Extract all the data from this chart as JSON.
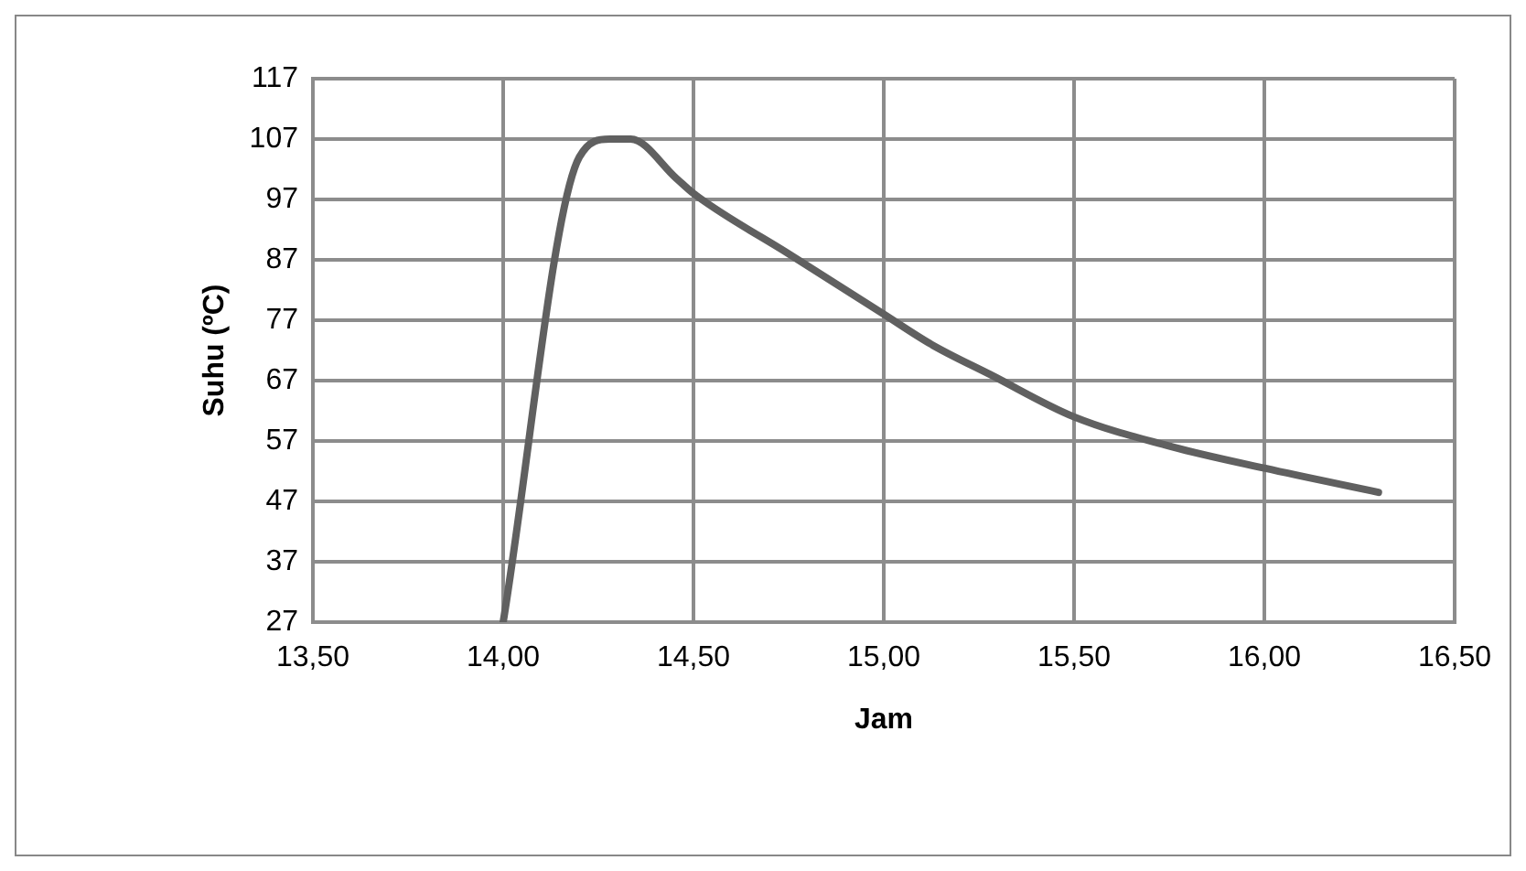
{
  "chart_data": {
    "type": "line",
    "xlabel": "Jam",
    "ylabel": "Suhu (ºC)",
    "x": [
      14.0,
      14.2,
      14.28,
      14.335,
      14.455,
      14.5,
      14.75,
      15.0,
      15.125,
      15.28,
      15.5,
      15.76,
      16.0,
      16.3
    ],
    "series": [
      {
        "color": "#606060",
        "values": [
          27,
          104,
          107,
          107,
          100.5,
          98,
          88,
          78,
          73,
          68,
          61,
          56,
          52.5,
          48.5
        ]
      }
    ],
    "xlim": [
      13.5,
      16.5
    ],
    "xticks": [
      {
        "value": 13.5,
        "label": "13,50"
      },
      {
        "value": 14,
        "label": "14,00"
      },
      {
        "value": 14.5,
        "label": "14,50"
      },
      {
        "value": 15,
        "label": "15,00"
      },
      {
        "value": 15.5,
        "label": "15,50"
      },
      {
        "value": 16,
        "label": "16,00"
      },
      {
        "value": 16.5,
        "label": "16,50"
      }
    ],
    "ylim": [
      27,
      117
    ],
    "yticks": [
      27,
      37,
      47,
      57,
      67,
      77,
      87,
      97,
      107,
      117
    ],
    "grid": true,
    "legend": false,
    "marker": "none",
    "line_style": "solid"
  }
}
